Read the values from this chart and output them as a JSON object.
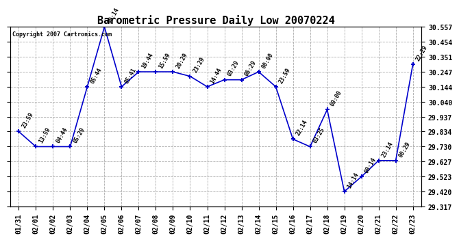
{
  "title": "Barometric Pressure Daily Low 20070224",
  "copyright": "Copyright 2007 Cartronics.com",
  "dates": [
    "01/31",
    "02/01",
    "02/02",
    "02/03",
    "02/04",
    "02/05",
    "02/06",
    "02/07",
    "02/08",
    "02/09",
    "02/10",
    "02/11",
    "02/12",
    "02/13",
    "02/14",
    "02/15",
    "02/16",
    "02/17",
    "02/18",
    "02/19",
    "02/20",
    "02/21",
    "02/22",
    "02/23"
  ],
  "values": [
    29.834,
    29.73,
    29.73,
    29.73,
    30.144,
    30.557,
    30.144,
    30.247,
    30.247,
    30.247,
    30.216,
    30.144,
    30.192,
    30.192,
    30.247,
    30.144,
    29.782,
    29.73,
    29.986,
    29.42,
    29.523,
    29.634,
    29.634,
    30.299
  ],
  "point_labels": [
    "23:59",
    "13:59",
    "04:44",
    "05:29",
    "05:44",
    "00:14",
    "05:41",
    "19:44",
    "15:59",
    "20:29",
    "23:29",
    "14:44",
    "03:29",
    "06:29",
    "00:00",
    "23:59",
    "22:14",
    "03:25",
    "00:00",
    "14:14",
    "00:14",
    "23:14",
    "00:29",
    "22:29"
  ],
  "ylim_min": 29.317,
  "ylim_max": 30.557,
  "yticks": [
    29.317,
    29.42,
    29.523,
    29.627,
    29.73,
    29.834,
    29.937,
    30.04,
    30.144,
    30.247,
    30.351,
    30.454,
    30.557
  ],
  "line_color": "#0000cc",
  "marker_color": "#0000cc",
  "bg_color": "#ffffff",
  "grid_color": "#aaaaaa",
  "title_fontsize": 11,
  "label_fontsize": 6,
  "tick_fontsize": 7,
  "copyright_fontsize": 6
}
